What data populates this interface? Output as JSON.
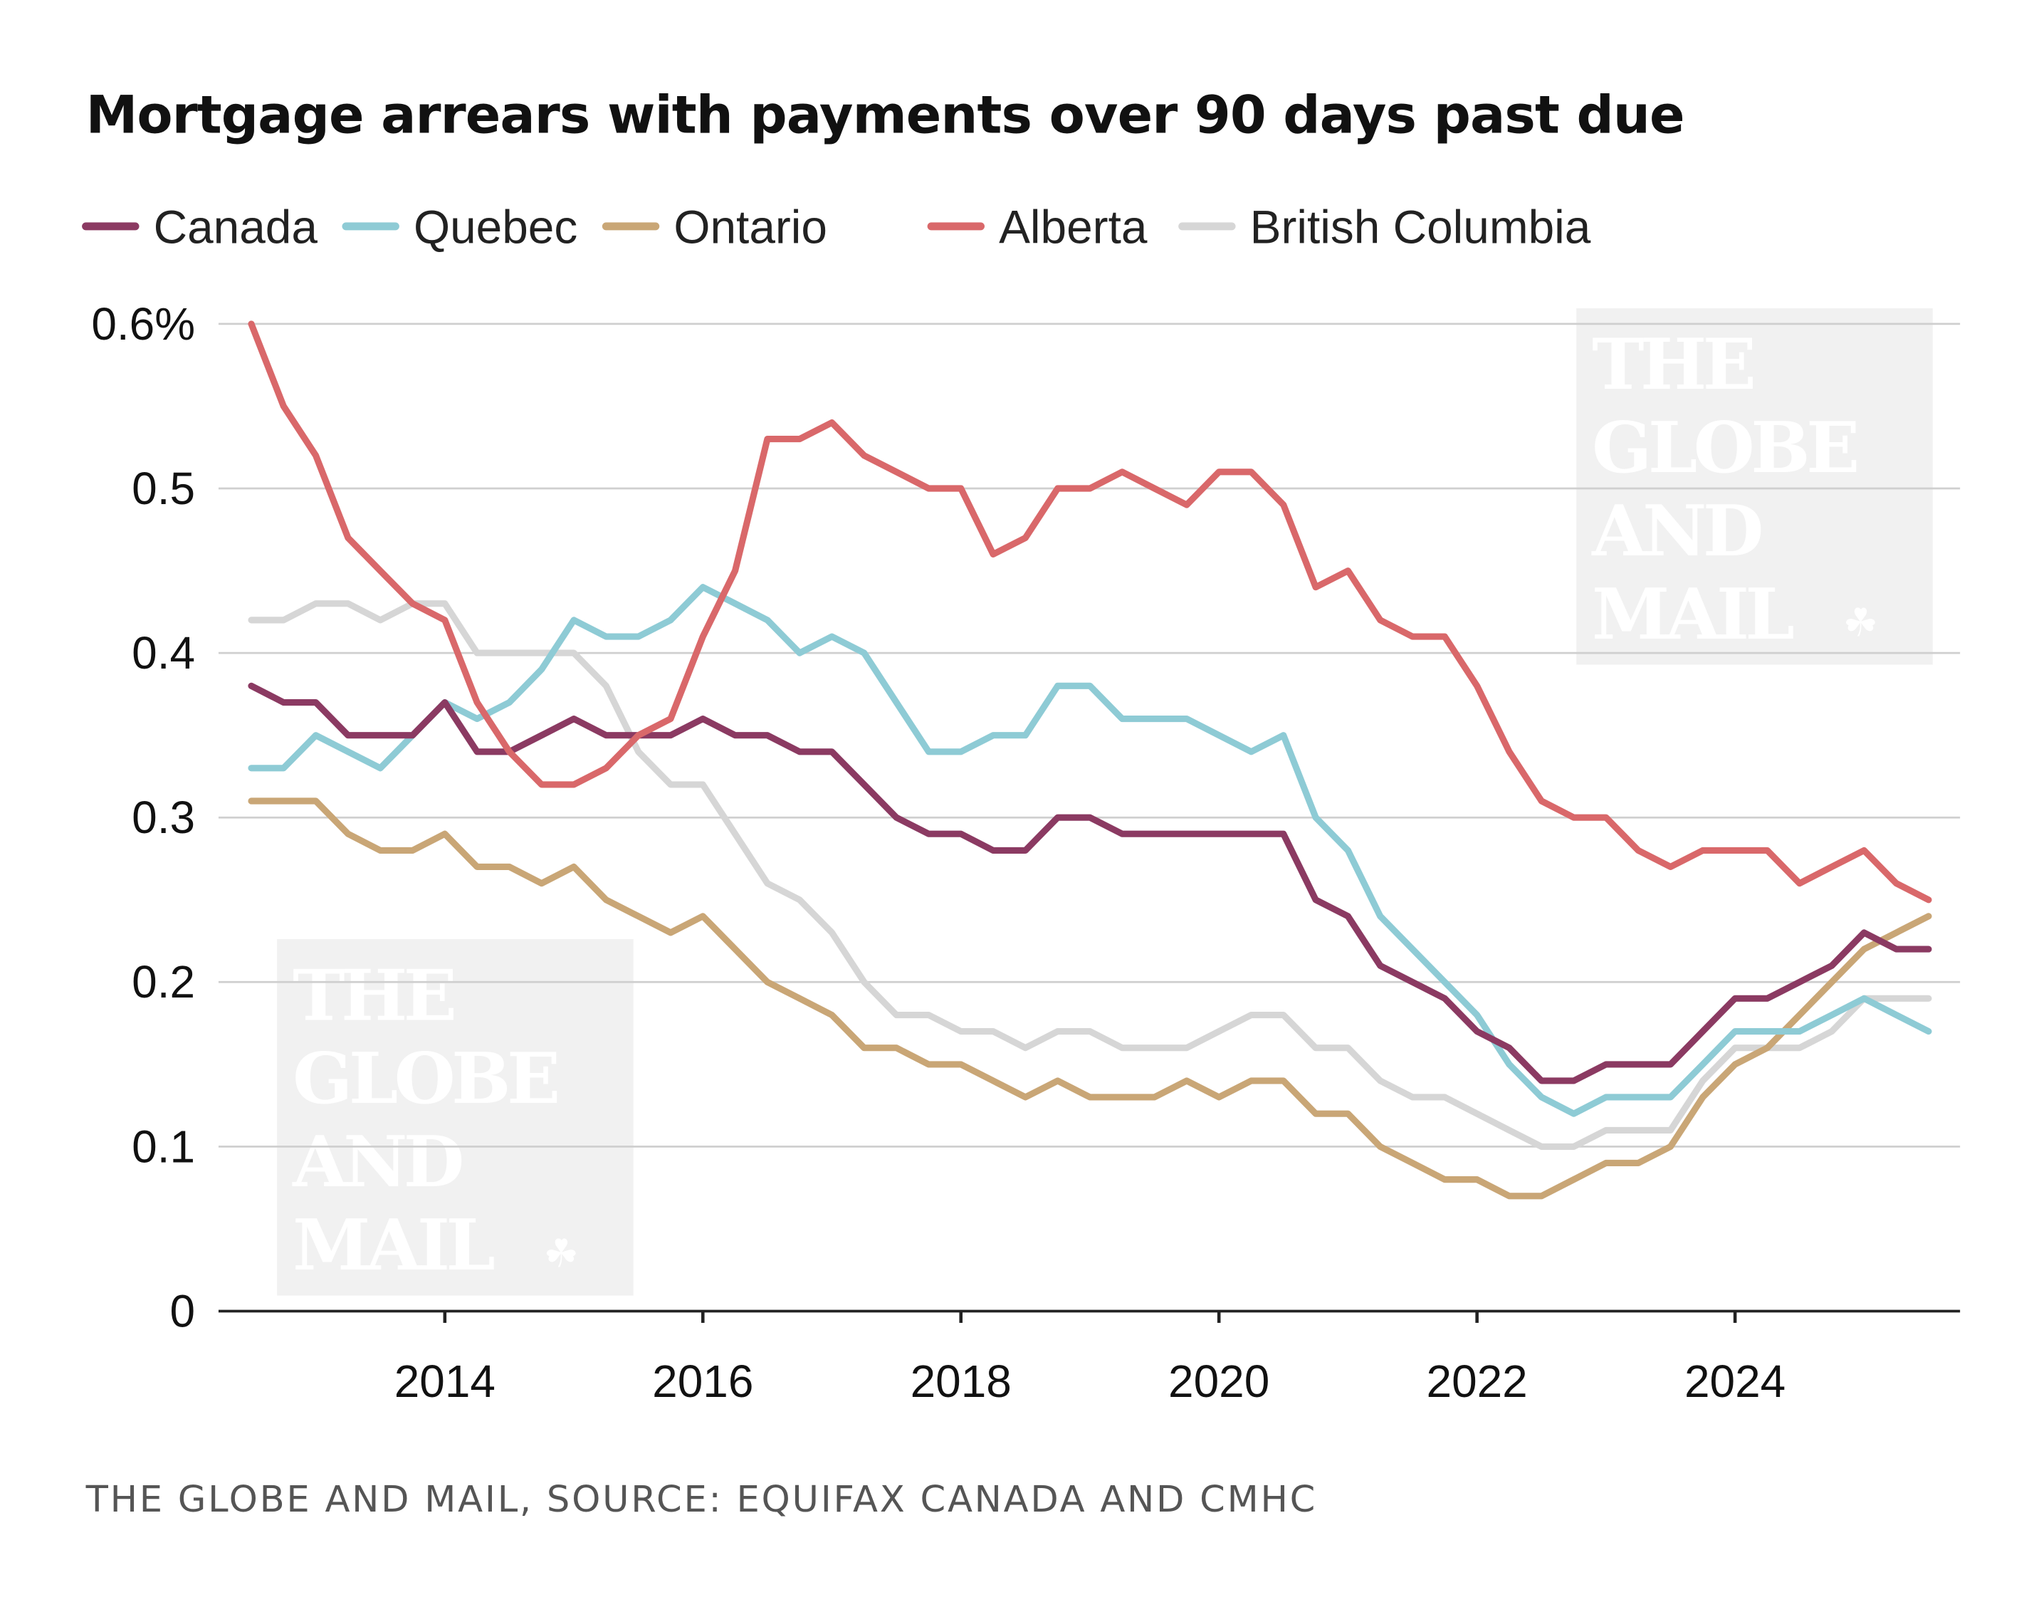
{
  "chart_data": {
    "type": "line",
    "title": "Mortgage arrears with payments over 90 days past due",
    "source": "THE GLOBE AND MAIL, SOURCE: EQUIFAX CANADA AND CMHC",
    "watermark": [
      "THE",
      "GLOBE",
      "AND",
      "MAIL"
    ],
    "xlabel": "",
    "ylabel": "",
    "ylim": [
      0,
      0.6
    ],
    "yticks": [
      0,
      0.1,
      0.2,
      0.3,
      0.4,
      0.5,
      0.6
    ],
    "ytick_labels": [
      "0",
      "0.1",
      "0.2",
      "0.3",
      "0.4",
      "0.5",
      "0.6%"
    ],
    "xticks": [
      2014,
      2016,
      2018,
      2020,
      2022,
      2024
    ],
    "xtick_labels": [
      "2014",
      "2016",
      "2018",
      "2020",
      "2022",
      "2024"
    ],
    "grid": true,
    "legend": "top",
    "x": [
      "2012-Q3",
      "2012-Q4",
      "2013-Q1",
      "2013-Q2",
      "2013-Q3",
      "2013-Q4",
      "2014-Q1",
      "2014-Q2",
      "2014-Q3",
      "2014-Q4",
      "2015-Q1",
      "2015-Q2",
      "2015-Q3",
      "2015-Q4",
      "2016-Q1",
      "2016-Q2",
      "2016-Q3",
      "2016-Q4",
      "2017-Q1",
      "2017-Q2",
      "2017-Q3",
      "2017-Q4",
      "2018-Q1",
      "2018-Q2",
      "2018-Q3",
      "2018-Q4",
      "2019-Q1",
      "2019-Q2",
      "2019-Q3",
      "2019-Q4",
      "2020-Q1",
      "2020-Q2",
      "2020-Q3",
      "2020-Q4",
      "2021-Q1",
      "2021-Q2",
      "2021-Q3",
      "2021-Q4",
      "2022-Q1",
      "2022-Q2",
      "2022-Q3",
      "2022-Q4",
      "2023-Q1",
      "2023-Q2",
      "2023-Q3",
      "2023-Q4",
      "2024-Q1",
      "2024-Q2",
      "2024-Q3",
      "2024-Q4",
      "2025-Q1",
      "2025-Q2",
      "2025-Q3"
    ],
    "series": [
      {
        "name": "Canada",
        "color": "#8b3a62",
        "values": [
          0.38,
          0.37,
          0.37,
          0.35,
          0.35,
          0.35,
          0.37,
          0.34,
          0.34,
          0.35,
          0.36,
          0.35,
          0.35,
          0.35,
          0.36,
          0.35,
          0.35,
          0.34,
          0.34,
          0.32,
          0.3,
          0.29,
          0.29,
          0.28,
          0.28,
          0.3,
          0.3,
          0.29,
          0.29,
          0.29,
          0.29,
          0.29,
          0.29,
          0.25,
          0.24,
          0.21,
          0.2,
          0.19,
          0.17,
          0.16,
          0.14,
          0.14,
          0.15,
          0.15,
          0.15,
          0.17,
          0.19,
          0.19,
          0.2,
          0.21,
          0.23,
          0.22,
          0.22
        ]
      },
      {
        "name": "Quebec",
        "color": "#8ecbd5",
        "values": [
          0.33,
          0.33,
          0.35,
          0.34,
          0.33,
          0.35,
          0.37,
          0.36,
          0.37,
          0.39,
          0.42,
          0.41,
          0.41,
          0.42,
          0.44,
          0.43,
          0.42,
          0.4,
          0.41,
          0.4,
          0.37,
          0.34,
          0.34,
          0.35,
          0.35,
          0.38,
          0.38,
          0.36,
          0.36,
          0.36,
          0.35,
          0.34,
          0.35,
          0.3,
          0.28,
          0.24,
          0.22,
          0.2,
          0.18,
          0.15,
          0.13,
          0.12,
          0.13,
          0.13,
          0.13,
          0.15,
          0.17,
          0.17,
          0.17,
          0.18,
          0.19,
          0.18,
          0.17
        ]
      },
      {
        "name": "Ontario",
        "color": "#c9a676",
        "values": [
          0.31,
          0.31,
          0.31,
          0.29,
          0.28,
          0.28,
          0.29,
          0.27,
          0.27,
          0.26,
          0.27,
          0.25,
          0.24,
          0.23,
          0.24,
          0.22,
          0.2,
          0.19,
          0.18,
          0.16,
          0.16,
          0.15,
          0.15,
          0.14,
          0.13,
          0.14,
          0.13,
          0.13,
          0.13,
          0.14,
          0.13,
          0.14,
          0.14,
          0.12,
          0.12,
          0.1,
          0.09,
          0.08,
          0.08,
          0.07,
          0.07,
          0.08,
          0.09,
          0.09,
          0.1,
          0.13,
          0.15,
          0.16,
          0.18,
          0.2,
          0.22,
          0.23,
          0.24
        ]
      },
      {
        "name": "Alberta",
        "color": "#d9686a",
        "values": [
          0.6,
          0.55,
          0.52,
          0.47,
          0.45,
          0.43,
          0.42,
          0.37,
          0.34,
          0.32,
          0.32,
          0.33,
          0.35,
          0.36,
          0.41,
          0.45,
          0.53,
          0.53,
          0.54,
          0.52,
          0.51,
          0.5,
          0.5,
          0.46,
          0.47,
          0.5,
          0.5,
          0.51,
          0.5,
          0.49,
          0.51,
          0.51,
          0.49,
          0.44,
          0.45,
          0.42,
          0.41,
          0.41,
          0.38,
          0.34,
          0.31,
          0.3,
          0.3,
          0.28,
          0.27,
          0.28,
          0.28,
          0.28,
          0.26,
          0.27,
          0.28,
          0.26,
          0.25
        ]
      },
      {
        "name": "British Columbia",
        "color": "#d6d6d6",
        "values": [
          0.42,
          0.42,
          0.43,
          0.43,
          0.42,
          0.43,
          0.43,
          0.4,
          0.4,
          0.4,
          0.4,
          0.38,
          0.34,
          0.32,
          0.32,
          0.29,
          0.26,
          0.25,
          0.23,
          0.2,
          0.18,
          0.18,
          0.17,
          0.17,
          0.16,
          0.17,
          0.17,
          0.16,
          0.16,
          0.16,
          0.17,
          0.18,
          0.18,
          0.16,
          0.16,
          0.14,
          0.13,
          0.13,
          0.12,
          0.11,
          0.1,
          0.1,
          0.11,
          0.11,
          0.11,
          0.14,
          0.16,
          0.16,
          0.16,
          0.17,
          0.19,
          0.19,
          0.19
        ]
      }
    ]
  }
}
